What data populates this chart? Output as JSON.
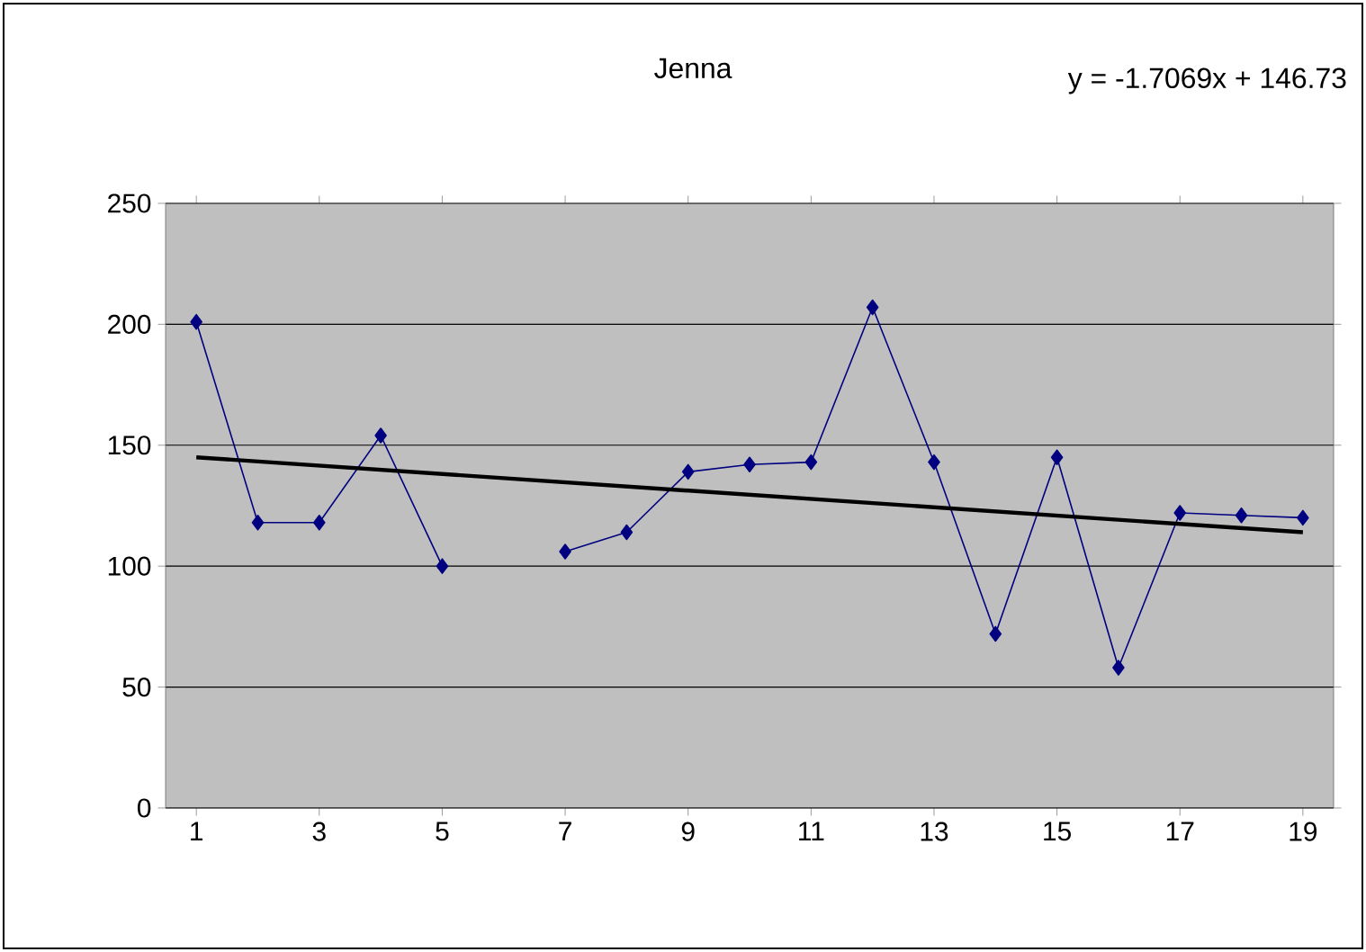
{
  "chart_data": {
    "type": "line",
    "title": "Jenna",
    "annotations": [
      "y = -1.7069x + 146.73"
    ],
    "x": [
      1,
      2,
      3,
      4,
      5,
      6,
      7,
      8,
      9,
      10,
      11,
      12,
      13,
      14,
      15,
      16,
      17,
      18,
      19
    ],
    "xlim": [
      0.5,
      19.5
    ],
    "xticks": [
      1,
      3,
      5,
      7,
      9,
      11,
      13,
      15,
      17,
      19
    ],
    "ylim": [
      0,
      250
    ],
    "yticks": [
      0,
      50,
      100,
      150,
      200,
      250
    ],
    "grid": "y",
    "series": [
      {
        "color": "#000080",
        "marker": "diamond",
        "line_style": "solid",
        "values": [
          201,
          118,
          118,
          154,
          100,
          null,
          106,
          114,
          139,
          142,
          143,
          207,
          143,
          72,
          145,
          58,
          122,
          121,
          120
        ]
      },
      {
        "type": "line",
        "color": "#000000",
        "marker": "none",
        "line_style": "solid",
        "x": [
          1,
          19
        ],
        "values": [
          145,
          114
        ]
      }
    ]
  }
}
